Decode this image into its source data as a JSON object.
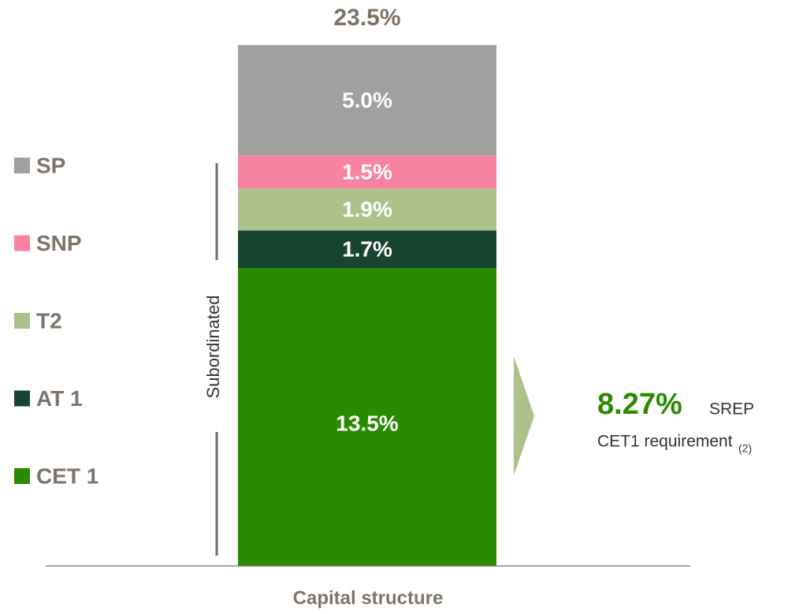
{
  "chart_data": {
    "type": "stacked_bar",
    "categories": [
      "Capital structure"
    ],
    "series": [
      {
        "name": "CET 1",
        "color": "#2a8a00",
        "values": [
          13.5
        ],
        "value_labels": [
          "13.5%"
        ]
      },
      {
        "name": "AT 1",
        "color": "#174532",
        "values": [
          1.7
        ],
        "value_labels": [
          "1.7%"
        ]
      },
      {
        "name": "T2",
        "color": "#adc28a",
        "values": [
          1.9
        ],
        "value_labels": [
          "1.9%"
        ]
      },
      {
        "name": "SNP",
        "color": "#f783a0",
        "values": [
          1.5
        ],
        "value_labels": [
          "1.5%"
        ]
      },
      {
        "name": "SP",
        "color": "#a0a09f",
        "values": [
          5.0
        ],
        "value_labels": [
          "5.0%"
        ]
      }
    ],
    "total": 23.5,
    "total_label": "23.5%",
    "bracket_label": "Subordinated",
    "annotation": {
      "value_text": "8.27%",
      "label": "SREP",
      "sub_label": "CET1 requirement",
      "footnote": "(2)"
    }
  }
}
